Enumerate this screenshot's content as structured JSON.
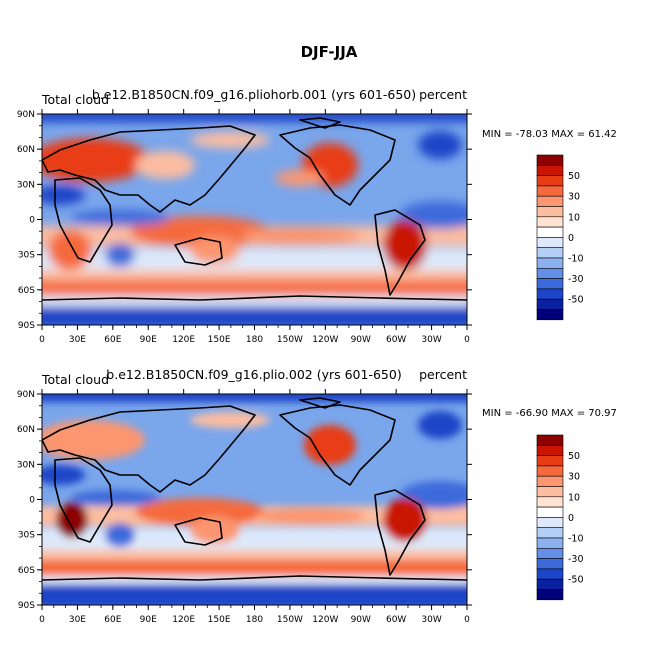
{
  "title": "DJF-JJA",
  "panels": [
    {
      "left_label": "Total cloud",
      "center_label": "b.e12.B1850CN.f09_g16.pliohorb.001 (yrs 601-650)",
      "right_label": "percent",
      "min_max": "MIN = -78.03 MAX =  61.42",
      "min": -78.03,
      "max": 61.42
    },
    {
      "left_label": "Total cloud",
      "center_label": "b.e12.B1850CN.f09_g16.plio.002 (yrs 601-650)",
      "right_label": "percent",
      "min_max": "MIN = -66.90 MAX =  70.97",
      "min": -66.9,
      "max": 70.97
    }
  ],
  "lat_ticks": [
    "90N",
    "60N",
    "30N",
    "0",
    "30S",
    "60S",
    "90S"
  ],
  "lon_ticks": [
    "0",
    "30E",
    "60E",
    "90E",
    "120E",
    "150E",
    "180",
    "150W",
    "120W",
    "90W",
    "60W",
    "30W",
    "0"
  ],
  "colorbar": {
    "levels": [
      -60,
      -50,
      -40,
      -30,
      -20,
      -10,
      -5,
      0,
      5,
      10,
      20,
      30,
      40,
      50,
      60
    ],
    "labels": [
      "50",
      "30",
      "10",
      "0",
      "-10",
      "-30",
      "-50"
    ],
    "colors": [
      "#8c0000",
      "#c81400",
      "#e83c14",
      "#f56a3c",
      "#fb9670",
      "#fdbda0",
      "#fee3d2",
      "#ffffff",
      "#dde9fa",
      "#b4cff5",
      "#8cb1ee",
      "#648fe6",
      "#3d6bdb",
      "#1b44c8",
      "#0a20a0",
      "#000078"
    ]
  }
}
